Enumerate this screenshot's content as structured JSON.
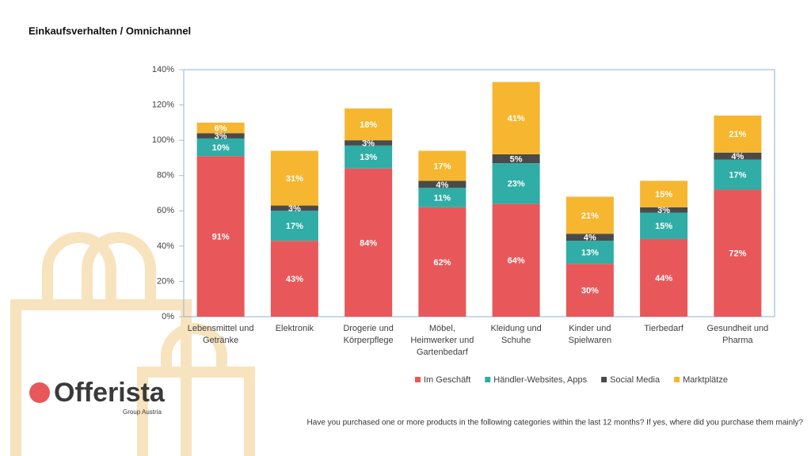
{
  "chart_data": {
    "type": "stacked_bar",
    "title": "Einkaufsverhalten / Omnichannel",
    "footnote": "Have you purchased one or more products in the following categories within the last 12 months? If yes, where did you purchase them mainly?",
    "categories": [
      "Lebensmittel und Getränke",
      "Elektronik",
      "Drogerie und Körperpflege",
      "Möbel, Heimwerker und Gartenbedarf",
      "Kleidung und Schuhe",
      "Kinder und Spielwaren",
      "Tierbedarf",
      "Gesundheit und Pharma"
    ],
    "series": [
      {
        "name": "Im Geschäft",
        "color": "#e8585a",
        "values": [
          91,
          43,
          84,
          62,
          64,
          30,
          44,
          72
        ],
        "value_labels": [
          "91%",
          "43%",
          "84%",
          "62%",
          "64%",
          "30%",
          "44%",
          "72%"
        ]
      },
      {
        "name": "Händler-Websites, Apps",
        "color": "#2fada6",
        "values": [
          10,
          17,
          13,
          11,
          23,
          13,
          15,
          17
        ],
        "value_labels": [
          "10%",
          "17%",
          "13%",
          "11%",
          "23%",
          "13%",
          "15%",
          "17%"
        ]
      },
      {
        "name": "Social Media",
        "color": "#4a4a4a",
        "values": [
          3,
          3,
          3,
          4,
          5,
          4,
          3,
          4
        ],
        "value_labels": [
          "3%",
          "3%",
          "3%",
          "4%",
          "5%",
          "4%",
          "3%",
          "4%"
        ]
      },
      {
        "name": "Marktplätze",
        "color": "#f6b62f",
        "values": [
          6,
          31,
          18,
          17,
          41,
          21,
          15,
          21
        ],
        "value_labels": [
          "6%",
          "31%",
          "18%",
          "17%",
          "41%",
          "21%",
          "15%",
          "21%"
        ]
      }
    ],
    "ylim": [
      0,
      140
    ],
    "yticks": [
      {
        "value": 0,
        "label": "0%"
      },
      {
        "value": 20,
        "label": "20%"
      },
      {
        "value": 40,
        "label": "40%"
      },
      {
        "value": 60,
        "label": "60%"
      },
      {
        "value": 80,
        "label": "80%"
      },
      {
        "value": 100,
        "label": "100%"
      },
      {
        "value": 120,
        "label": "120%"
      },
      {
        "value": 140,
        "label": "140%"
      }
    ],
    "grid": false,
    "legend": "bottom"
  },
  "logo": {
    "name": "Offerista",
    "tagline": "Group Austria"
  }
}
